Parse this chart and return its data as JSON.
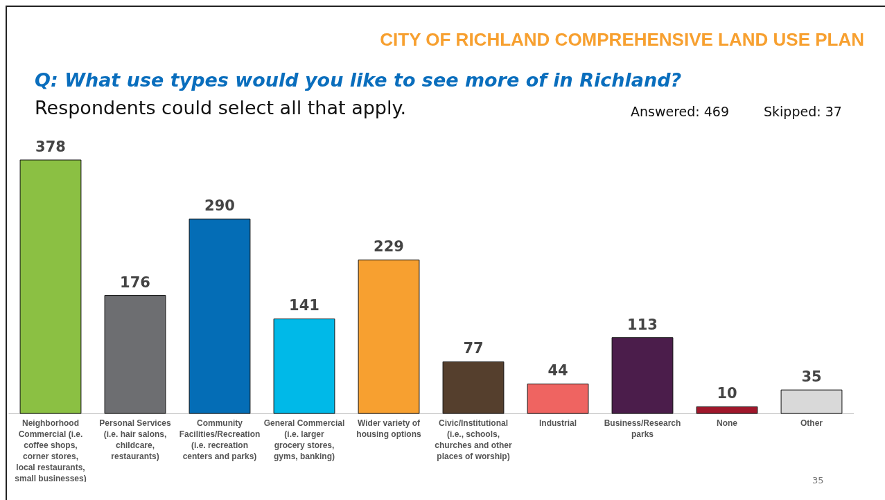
{
  "chart_data": {
    "type": "bar",
    "title": "Q: What use types would you like to see more of in Richland?",
    "subtitle": "Respondents could select all that apply.",
    "annotations": [
      "CITY OF RICHLAND COMPREHENSIVE LAND USE PLAN",
      "Answered: 469",
      "Skipped: 37",
      "35"
    ],
    "categories": [
      "Neighborhood Commercial (i.e. coffee shops, corner stores, local restaurants, small businesses)",
      "Personal Services (i.e. hair salons, childcare, restaurants)",
      "Community Facilities/Recreation (i.e. recreation centers and parks)",
      "General Commercial (i.e. larger grocery stores, gyms, banking)",
      "Wider variety of housing options",
      "Civic/Institutional (i.e., schools, churches and other places of worship)",
      "Industrial",
      "Business/Research parks",
      "None",
      "Other"
    ],
    "values": [
      378,
      176,
      290,
      141,
      229,
      77,
      44,
      113,
      10,
      35
    ],
    "colors": [
      "#8bc043",
      "#6d6e71",
      "#046db6",
      "#00b9e8",
      "#f7a030",
      "#553f2d",
      "#ef6461",
      "#4b1d4b",
      "#a0172b",
      "#d9d9d9"
    ],
    "data_labels": true,
    "tick_labels": "x"
  }
}
